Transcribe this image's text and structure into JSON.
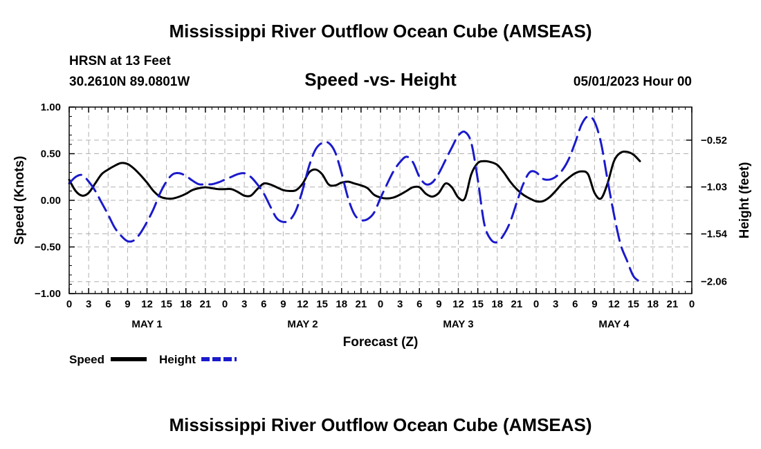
{
  "page": {
    "title": "Mississippi River Outflow Ocean Cube (AMSEAS)",
    "footer_title": "Mississippi River Outflow Ocean Cube (AMSEAS)"
  },
  "info": {
    "station": "HRSN at 13 Feet",
    "location": "30.2610N  89.0801W",
    "datetime": "05/01/2023 Hour 00"
  },
  "chart_data": {
    "type": "line",
    "title": "Speed -vs- Height",
    "xlabel": "Forecast (Z)",
    "ylabel": "Speed (Knots)",
    "y2label": "Height (feet)",
    "x_range_hours": [
      0,
      96
    ],
    "ylim": [
      -1.0,
      1.0
    ],
    "y2lim": [
      -2.19,
      -0.16
    ],
    "yticks": [
      {
        "value": -1.0,
        "label": "−1.00"
      },
      {
        "value": -0.5,
        "label": "−0.50"
      },
      {
        "value": 0.0,
        "label": "0.00"
      },
      {
        "value": 0.5,
        "label": "0.50"
      },
      {
        "value": 1.0,
        "label": "1.00"
      }
    ],
    "y2ticks": [
      {
        "value": -0.52,
        "label": "−0.52"
      },
      {
        "value": -1.03,
        "label": "−1.03"
      },
      {
        "value": -1.54,
        "label": "−1.54"
      },
      {
        "value": -2.06,
        "label": "−2.06"
      }
    ],
    "xtick_step_hours": 3,
    "xtick_labels": [
      "0",
      "3",
      "6",
      "9",
      "12",
      "15",
      "18",
      "21",
      "0",
      "3",
      "6",
      "9",
      "12",
      "15",
      "18",
      "21",
      "0",
      "3",
      "6",
      "9",
      "12",
      "15",
      "18",
      "21",
      "0",
      "3",
      "6",
      "9",
      "12",
      "15",
      "18",
      "21",
      "0"
    ],
    "day_labels": [
      {
        "hour": 12,
        "label": "MAY 1"
      },
      {
        "hour": 36,
        "label": "MAY 2"
      },
      {
        "hour": 60,
        "label": "MAY 3"
      },
      {
        "hour": 84,
        "label": "MAY 4"
      }
    ],
    "grid": true,
    "series": [
      {
        "name": "Speed",
        "axis": "left",
        "color": "#000000",
        "style": "solid",
        "points": [
          [
            0,
            0.22
          ],
          [
            1,
            0.1
          ],
          [
            2,
            0.05
          ],
          [
            3,
            0.08
          ],
          [
            4,
            0.18
          ],
          [
            5,
            0.28
          ],
          [
            6,
            0.33
          ],
          [
            7,
            0.37
          ],
          [
            8,
            0.4
          ],
          [
            9,
            0.39
          ],
          [
            10,
            0.34
          ],
          [
            11,
            0.27
          ],
          [
            12,
            0.19
          ],
          [
            13,
            0.1
          ],
          [
            14,
            0.04
          ],
          [
            15,
            0.02
          ],
          [
            16,
            0.02
          ],
          [
            17,
            0.04
          ],
          [
            18,
            0.07
          ],
          [
            19,
            0.11
          ],
          [
            20,
            0.13
          ],
          [
            21,
            0.14
          ],
          [
            22,
            0.13
          ],
          [
            23,
            0.12
          ],
          [
            24,
            0.12
          ],
          [
            25,
            0.12
          ],
          [
            26,
            0.09
          ],
          [
            27,
            0.05
          ],
          [
            28,
            0.05
          ],
          [
            29,
            0.12
          ],
          [
            30,
            0.18
          ],
          [
            31,
            0.17
          ],
          [
            32,
            0.14
          ],
          [
            33,
            0.11
          ],
          [
            34,
            0.1
          ],
          [
            35,
            0.11
          ],
          [
            36,
            0.18
          ],
          [
            37,
            0.3
          ],
          [
            38,
            0.33
          ],
          [
            39,
            0.28
          ],
          [
            40,
            0.17
          ],
          [
            41,
            0.16
          ],
          [
            42,
            0.19
          ],
          [
            43,
            0.2
          ],
          [
            44,
            0.18
          ],
          [
            45,
            0.16
          ],
          [
            46,
            0.13
          ],
          [
            47,
            0.06
          ],
          [
            48,
            0.03
          ],
          [
            49,
            0.02
          ],
          [
            50,
            0.03
          ],
          [
            51,
            0.06
          ],
          [
            52,
            0.1
          ],
          [
            53,
            0.14
          ],
          [
            54,
            0.14
          ],
          [
            55,
            0.07
          ],
          [
            56,
            0.04
          ],
          [
            57,
            0.08
          ],
          [
            58,
            0.18
          ],
          [
            59,
            0.14
          ],
          [
            60,
            0.03
          ],
          [
            61,
            0.02
          ],
          [
            62,
            0.28
          ],
          [
            63,
            0.4
          ],
          [
            64,
            0.42
          ],
          [
            65,
            0.41
          ],
          [
            66,
            0.38
          ],
          [
            67,
            0.3
          ],
          [
            68,
            0.2
          ],
          [
            69,
            0.12
          ],
          [
            70,
            0.06
          ],
          [
            71,
            0.02
          ],
          [
            72,
            -0.01
          ],
          [
            73,
            -0.01
          ],
          [
            74,
            0.03
          ],
          [
            75,
            0.1
          ],
          [
            76,
            0.18
          ],
          [
            77,
            0.24
          ],
          [
            78,
            0.29
          ],
          [
            79,
            0.31
          ],
          [
            80,
            0.28
          ],
          [
            81,
            0.08
          ],
          [
            82,
            0.02
          ],
          [
            83,
            0.18
          ],
          [
            84,
            0.42
          ],
          [
            85,
            0.51
          ],
          [
            86,
            0.52
          ],
          [
            87,
            0.49
          ],
          [
            88,
            0.42
          ]
        ]
      },
      {
        "name": "Height",
        "axis": "right",
        "color": "#1a1acc",
        "style": "dashed",
        "points": [
          [
            0,
            -0.99
          ],
          [
            1,
            -0.92
          ],
          [
            2,
            -0.9
          ],
          [
            3,
            -0.97
          ],
          [
            4,
            -1.07
          ],
          [
            5,
            -1.2
          ],
          [
            6,
            -1.33
          ],
          [
            7,
            -1.47
          ],
          [
            8,
            -1.56
          ],
          [
            9,
            -1.62
          ],
          [
            10,
            -1.61
          ],
          [
            11,
            -1.53
          ],
          [
            12,
            -1.41
          ],
          [
            13,
            -1.27
          ],
          [
            14,
            -1.1
          ],
          [
            15,
            -0.97
          ],
          [
            16,
            -0.89
          ],
          [
            17,
            -0.88
          ],
          [
            18,
            -0.91
          ],
          [
            19,
            -0.96
          ],
          [
            20,
            -1.0
          ],
          [
            21,
            -1.0
          ],
          [
            22,
            -1.0
          ],
          [
            23,
            -0.98
          ],
          [
            24,
            -0.95
          ],
          [
            25,
            -0.92
          ],
          [
            26,
            -0.89
          ],
          [
            27,
            -0.88
          ],
          [
            28,
            -0.92
          ],
          [
            29,
            -1.0
          ],
          [
            30,
            -1.1
          ],
          [
            31,
            -1.24
          ],
          [
            32,
            -1.37
          ],
          [
            33,
            -1.41
          ],
          [
            34,
            -1.39
          ],
          [
            35,
            -1.28
          ],
          [
            36,
            -1.06
          ],
          [
            37,
            -0.8
          ],
          [
            38,
            -0.62
          ],
          [
            39,
            -0.55
          ],
          [
            40,
            -0.55
          ],
          [
            41,
            -0.65
          ],
          [
            42,
            -0.88
          ],
          [
            43,
            -1.15
          ],
          [
            44,
            -1.33
          ],
          [
            45,
            -1.39
          ],
          [
            46,
            -1.38
          ],
          [
            47,
            -1.31
          ],
          [
            48,
            -1.15
          ],
          [
            49,
            -1.0
          ],
          [
            50,
            -0.86
          ],
          [
            51,
            -0.76
          ],
          [
            52,
            -0.7
          ],
          [
            53,
            -0.76
          ],
          [
            54,
            -0.92
          ],
          [
            55,
            -1.0
          ],
          [
            56,
            -0.98
          ],
          [
            57,
            -0.88
          ],
          [
            58,
            -0.74
          ],
          [
            59,
            -0.6
          ],
          [
            60,
            -0.47
          ],
          [
            61,
            -0.43
          ],
          [
            62,
            -0.55
          ],
          [
            63,
            -0.95
          ],
          [
            64,
            -1.43
          ],
          [
            65,
            -1.6
          ],
          [
            66,
            -1.63
          ],
          [
            67,
            -1.55
          ],
          [
            68,
            -1.41
          ],
          [
            69,
            -1.2
          ],
          [
            70,
            -1.0
          ],
          [
            71,
            -0.87
          ],
          [
            72,
            -0.87
          ],
          [
            73,
            -0.94
          ],
          [
            74,
            -0.95
          ],
          [
            75,
            -0.92
          ],
          [
            76,
            -0.85
          ],
          [
            77,
            -0.73
          ],
          [
            78,
            -0.55
          ],
          [
            79,
            -0.35
          ],
          [
            80,
            -0.26
          ],
          [
            81,
            -0.32
          ],
          [
            82,
            -0.55
          ],
          [
            83,
            -0.95
          ],
          [
            84,
            -1.33
          ],
          [
            85,
            -1.65
          ],
          [
            86,
            -1.83
          ],
          [
            87,
            -2.0
          ],
          [
            88,
            -2.06
          ]
        ]
      }
    ],
    "legend": [
      {
        "label": "Speed",
        "color": "#000000",
        "style": "solid"
      },
      {
        "label": "Height",
        "color": "#1a1acc",
        "style": "dashed"
      }
    ]
  }
}
